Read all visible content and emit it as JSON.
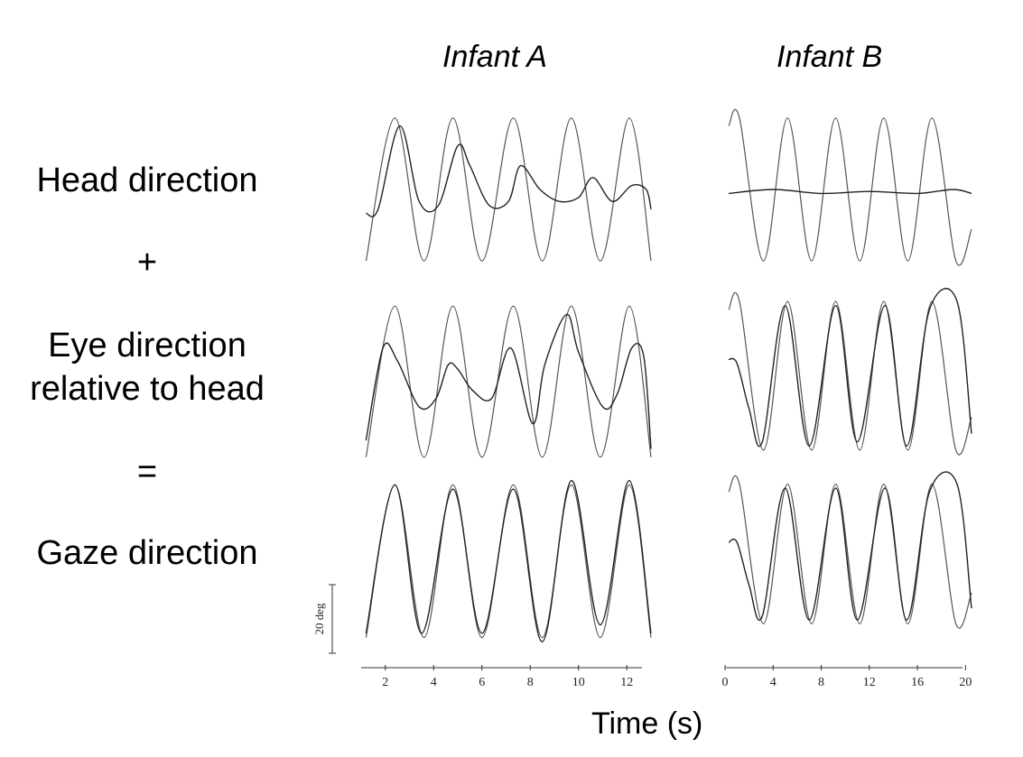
{
  "column_titles": [
    "Infant A",
    "Infant B"
  ],
  "row_labels": {
    "head": "Head direction",
    "plus": "+",
    "eye_line1": "Eye direction",
    "eye_line2": "relative to head",
    "equals": "=",
    "gaze": "Gaze direction"
  },
  "x_axis_title": "Time (s)",
  "scale_bar_label": "20 deg",
  "chart_data": [
    {
      "type": "line",
      "panel": "Infant A",
      "x_ticks": [
        2,
        4,
        6,
        8,
        10,
        12
      ],
      "xlim": [
        1,
        13
      ],
      "ylim": [
        -20,
        20
      ],
      "rows": [
        {
          "row": "Head direction",
          "series": [
            {
              "style": "target",
              "x": [
                1.2,
                2.4,
                3.6,
                4.8,
                6.0,
                7.3,
                8.5,
                9.7,
                10.9,
                12.1,
                13.0
              ],
              "y": [
                -18,
                18,
                -18,
                18,
                -18,
                18,
                -18,
                18,
                -18,
                18,
                -18
              ]
            },
            {
              "style": "measured",
              "x": [
                1.2,
                1.7,
                2.6,
                3.4,
                4.2,
                5.0,
                5.5,
                6.3,
                7.1,
                7.6,
                8.4,
                9.2,
                10.0,
                10.6,
                11.4,
                12.2,
                12.8,
                13.0
              ],
              "y": [
                -6,
                -5,
                16,
                -3,
                -4,
                11,
                6,
                -4,
                -3,
                6,
                0,
                -3,
                -2,
                3,
                -3,
                1,
                0,
                -5
              ]
            }
          ]
        },
        {
          "row": "Eye direction relative to head",
          "series": [
            {
              "style": "target",
              "x": [
                1.2,
                2.4,
                3.6,
                4.8,
                6.0,
                7.3,
                8.5,
                9.7,
                10.9,
                12.1,
                13.0
              ],
              "y": [
                -18,
                18,
                -18,
                18,
                -18,
                18,
                -18,
                18,
                -18,
                18,
                -18
              ]
            },
            {
              "style": "measured",
              "x": [
                1.2,
                1.9,
                2.5,
                3.4,
                4.1,
                4.6,
                5.0,
                5.6,
                6.4,
                7.2,
                8.1,
                8.6,
                9.5,
                10.0,
                11.0,
                11.6,
                12.2,
                12.7,
                13.0
              ],
              "y": [
                -14,
                8,
                5,
                -6,
                -4,
                4,
                3,
                -2,
                -4,
                8,
                -10,
                4,
                16,
                7,
                -6,
                -3,
                8,
                6,
                -16
              ]
            }
          ]
        },
        {
          "row": "Gaze direction",
          "series": [
            {
              "style": "target",
              "x": [
                1.2,
                2.4,
                3.6,
                4.8,
                6.0,
                7.3,
                8.5,
                9.7,
                10.9,
                12.1,
                13.0
              ],
              "y": [
                -18,
                18,
                -18,
                18,
                -18,
                18,
                -18,
                18,
                -18,
                18,
                -18
              ]
            },
            {
              "style": "measured",
              "x": [
                1.2,
                2.4,
                3.5,
                4.8,
                6.0,
                7.3,
                8.5,
                9.7,
                10.9,
                12.1,
                13.0
              ],
              "y": [
                -17,
                18,
                -17,
                17,
                -17,
                17,
                -19,
                19,
                -15,
                19,
                -17
              ]
            }
          ]
        }
      ]
    },
    {
      "type": "line",
      "panel": "Infant B",
      "x_ticks": [
        0,
        4,
        8,
        12,
        16,
        20
      ],
      "xlim": [
        0,
        20.5
      ],
      "ylim": [
        -20,
        20
      ],
      "rows": [
        {
          "row": "Head direction",
          "series": [
            {
              "style": "target",
              "x": [
                0.3,
                1.2,
                3.2,
                5.2,
                7.2,
                9.2,
                11.2,
                13.2,
                15.2,
                17.2,
                19.2,
                20.5
              ],
              "y": [
                16,
                18,
                -18,
                18,
                -18,
                18,
                -18,
                18,
                -18,
                18,
                -18,
                -10
              ]
            },
            {
              "style": "measured",
              "x": [
                0.3,
                4,
                8,
                12,
                16,
                19,
                20.5
              ],
              "y": [
                -1,
                0,
                -1,
                -0.5,
                -1,
                0,
                -1
              ]
            }
          ]
        },
        {
          "row": "Eye direction relative to head",
          "series": [
            {
              "style": "target",
              "x": [
                0.3,
                1.2,
                3.2,
                5.2,
                7.2,
                9.2,
                11.2,
                13.2,
                15.2,
                17.2,
                19.2,
                20.5
              ],
              "y": [
                16,
                18,
                -18,
                18,
                -18,
                18,
                -18,
                18,
                -18,
                18,
                -18,
                -10
              ]
            },
            {
              "style": "measured",
              "x": [
                0.3,
                1.0,
                2.0,
                3.1,
                5.0,
                7.0,
                9.2,
                11.0,
                13.3,
                15.1,
                17.0,
                19.3,
                20.5
              ],
              "y": [
                4,
                3,
                -8,
                -16,
                17,
                -17,
                17,
                -16,
                17,
                -17,
                16,
                18,
                -14
              ]
            }
          ]
        },
        {
          "row": "Gaze direction",
          "series": [
            {
              "style": "target",
              "x": [
                0.3,
                1.2,
                3.2,
                5.2,
                7.2,
                9.2,
                11.2,
                13.2,
                15.2,
                17.2,
                19.2,
                20.5
              ],
              "y": [
                16,
                18,
                -18,
                18,
                -18,
                18,
                -18,
                18,
                -18,
                18,
                -18,
                -10
              ]
            },
            {
              "style": "measured",
              "x": [
                0.3,
                1.0,
                2.0,
                3.1,
                5.0,
                7.0,
                9.2,
                11.0,
                13.3,
                15.1,
                17.0,
                19.3,
                20.5
              ],
              "y": [
                3,
                3,
                -8,
                -16,
                17,
                -17,
                17,
                -17,
                17,
                -17,
                16,
                18,
                -14
              ]
            }
          ]
        }
      ]
    }
  ]
}
